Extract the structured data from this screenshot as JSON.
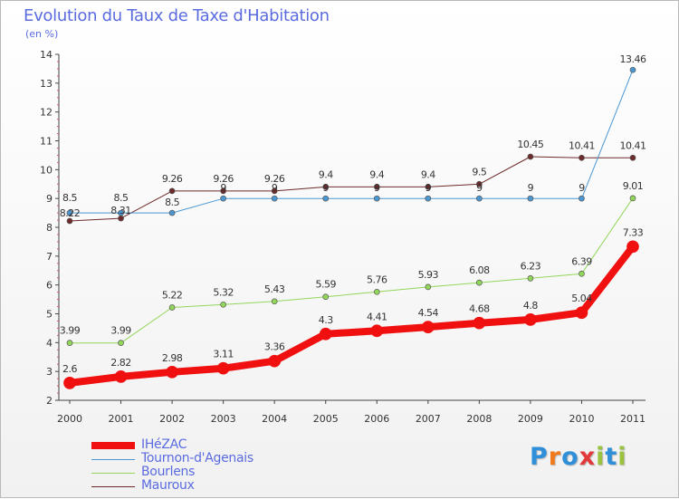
{
  "title": "Evolution du Taux de Taxe d'Habitation",
  "unit_label": "(en %)",
  "logo": {
    "text": "Proxiti",
    "letters": [
      {
        "ch": "P",
        "color": "#2f8fd8"
      },
      {
        "ch": "r",
        "color": "#f07a1c"
      },
      {
        "ch": "o",
        "color": "#2f8fd8"
      },
      {
        "ch": "x",
        "color": "#e23a3a"
      },
      {
        "ch": "i",
        "color": "#9ac23c"
      },
      {
        "ch": "t",
        "color": "#2f8fd8"
      },
      {
        "ch": "i",
        "color": "#9ac23c"
      }
    ]
  },
  "chart_data": {
    "type": "line",
    "title": "Evolution du Taux de Taxe d'Habitation",
    "ylabel": "(en %)",
    "xlabel": "",
    "x": [
      "2000",
      "2001",
      "2002",
      "2003",
      "2004",
      "2005",
      "2006",
      "2007",
      "2008",
      "2009",
      "2010",
      "2011"
    ],
    "ylim": [
      2,
      14
    ],
    "yticks": [
      2,
      3,
      4,
      5,
      6,
      7,
      8,
      9,
      10,
      11,
      12,
      13,
      14
    ],
    "grid": false,
    "legend_position": "bottom-left",
    "series": [
      {
        "name": "IHéZAC",
        "color": "#f01010",
        "width": 8,
        "values": [
          2.6,
          2.82,
          2.98,
          3.11,
          3.36,
          4.3,
          4.41,
          4.54,
          4.68,
          4.8,
          5.04,
          7.33
        ],
        "labels": [
          "2.6",
          "2.82",
          "2.98",
          "3.11",
          "3.36",
          "4.3",
          "4.41",
          "4.54",
          "4.68",
          "4.8",
          "5.04",
          "7.33"
        ]
      },
      {
        "name": "Tournon-d'Agenais",
        "color": "#4a97d2",
        "width": 1,
        "values": [
          8.5,
          8.5,
          8.5,
          9,
          9,
          9,
          9,
          9,
          9,
          9,
          9,
          13.46
        ],
        "labels": [
          "8.5",
          "8.5",
          "8.5",
          "9",
          "9",
          "9",
          "9",
          "9",
          "9",
          "9",
          "9",
          "13.46"
        ]
      },
      {
        "name": "Bourlens",
        "color": "#92d65a",
        "width": 1,
        "values": [
          3.99,
          3.99,
          5.22,
          5.32,
          5.43,
          5.59,
          5.76,
          5.93,
          6.08,
          6.23,
          6.39,
          9.01
        ],
        "labels": [
          "3.99",
          "3.99",
          "5.22",
          "5.32",
          "5.43",
          "5.59",
          "5.76",
          "5.93",
          "6.08",
          "6.23",
          "6.39",
          "9.01"
        ]
      },
      {
        "name": "Mauroux",
        "color": "#6e2a2a",
        "width": 1,
        "values": [
          8.22,
          8.31,
          9.26,
          9.26,
          9.26,
          9.4,
          9.4,
          9.4,
          9.5,
          10.45,
          10.41,
          10.41
        ],
        "labels": [
          "8.22",
          "8.31",
          "9.26",
          "9.26",
          "9.26",
          "9.4",
          "9.4",
          "9.4",
          "9.5",
          "10.45",
          "10.41",
          "10.41"
        ]
      }
    ]
  }
}
